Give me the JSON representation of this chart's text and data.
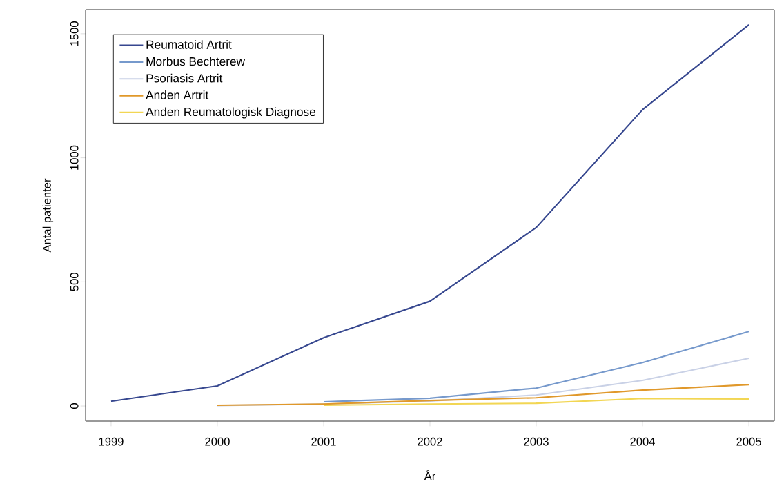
{
  "chart_data": {
    "type": "line",
    "xlabel": "År",
    "ylabel": "Antal patienter",
    "x": [
      1999,
      2000,
      2001,
      2002,
      2003,
      2004,
      2005
    ],
    "xlim": [
      1998.76,
      2005.24
    ],
    "ylim": [
      -61,
      1597
    ],
    "xticks": [
      1999,
      2000,
      2001,
      2002,
      2003,
      2004,
      2005
    ],
    "yticks": [
      0,
      500,
      1000,
      1500
    ],
    "grid": false,
    "legend": "top left",
    "marker": "none",
    "line_style": "solid",
    "series": [
      {
        "name": "Reumatoid Artrit",
        "color": "#36478f",
        "values": [
          19,
          81,
          275,
          422,
          719,
          1194,
          1536
        ]
      },
      {
        "name": "Morbus Bechterew",
        "color": "#7699cc",
        "values": [
          null,
          null,
          17,
          31,
          72,
          175,
          300
        ]
      },
      {
        "name": "Psoriasis Artrit",
        "color": "#c9d1e6",
        "values": [
          null,
          2,
          8,
          20,
          44,
          103,
          192
        ]
      },
      {
        "name": "Anden Artrit",
        "color": "#e0982a",
        "values": [
          null,
          3,
          8,
          22,
          33,
          64,
          86
        ]
      },
      {
        "name": "Anden Reumatologisk Diagnose",
        "color": "#f2d653",
        "values": [
          null,
          null,
          3,
          8,
          11,
          30,
          28
        ]
      }
    ]
  }
}
